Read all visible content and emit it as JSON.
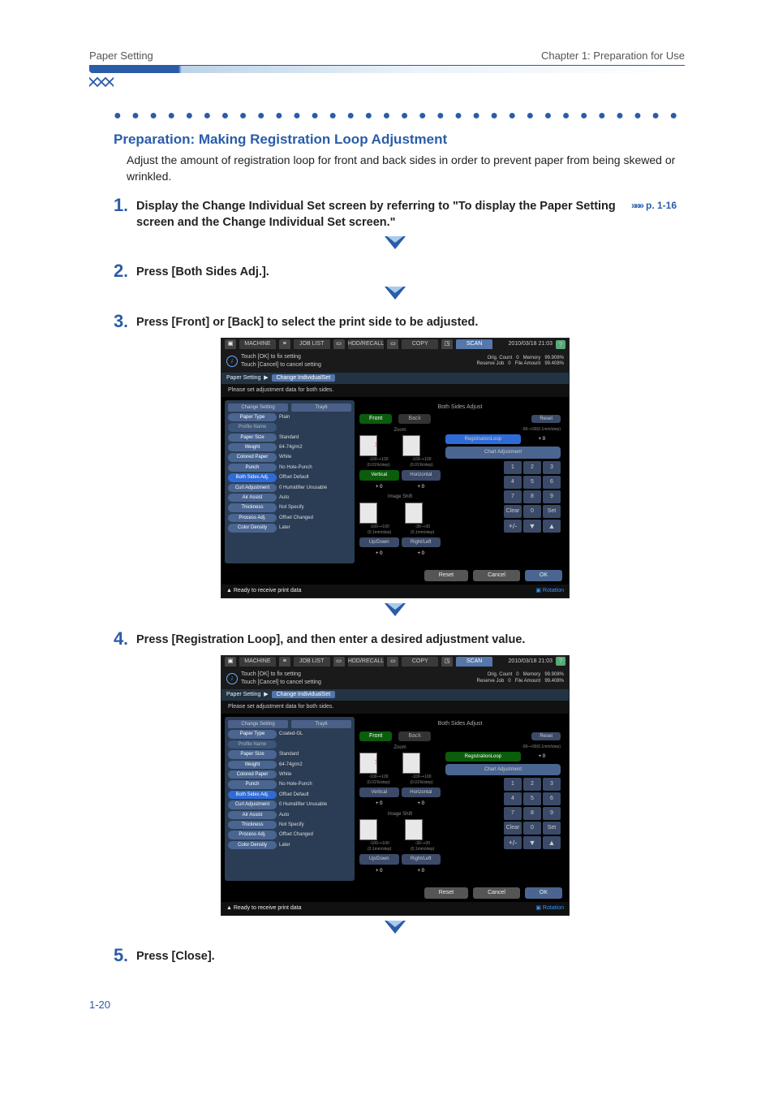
{
  "header": {
    "left": "Paper Setting",
    "right": "Chapter 1: Preparation for Use"
  },
  "dots": "● ● ● ● ● ● ● ● ● ● ● ● ● ● ● ● ● ● ● ● ● ● ● ● ● ● ● ● ● ● ● ● ● ● ● ● ● ● ● ● ● ● ● ● ●",
  "prep": {
    "title": "Preparation: Making Registration Loop Adjustment",
    "desc": "Adjust the amount of registration loop for front and back sides in order to prevent paper from being skewed or wrinkled."
  },
  "steps": {
    "s1": {
      "num": "1",
      "text": "Display the Change Individual Set screen by referring to \"To display the Paper Setting screen and the Change Individual Set screen.\"",
      "ref_chevron": "»»»",
      "ref": "p. 1-16"
    },
    "s2": {
      "num": "2",
      "text": "Press [Both Sides Adj.]."
    },
    "s3": {
      "num": "3",
      "text": "Press [Front] or [Back] to select the print side to be adjusted."
    },
    "s4": {
      "num": "4",
      "text": "Press [Registration Loop], and then enter a desired adjustment value."
    },
    "s5": {
      "num": "5",
      "text": "Press [Close]."
    }
  },
  "panel_common": {
    "tabs": {
      "machine": "MACHINE",
      "joblist": "",
      "recall": "",
      "copy": "",
      "scan": "SCAN"
    },
    "datetime": "2010/03/18 21:03",
    "info_line1": "Touch [OK] to fix setting",
    "info_line2": "Touch [Cancel] to cancel setting",
    "stat_orig": "Orig. Count",
    "stat_orig_v": "0",
    "stat_mem": "Memory",
    "stat_mem_v": "99.908%",
    "stat_res": "Reserve Job",
    "stat_res_v": "0",
    "stat_file": "File Amount",
    "stat_file_v": "99.408%",
    "breadcrumb_a": "Paper Setting",
    "breadcrumb_b": "Change IndividualSet",
    "subtitle": "Please set adjustment data for both sides.",
    "left_header_a": "Change Setting",
    "left_header_b": "Tray6",
    "right_title": "Both Sides Adjust",
    "tab_front": "Front",
    "tab_back": "Back",
    "reset": "Reset",
    "zoom_title": "Zoom",
    "zoom_vrange": "-100–+100\n(0.01%/step)",
    "zoom_hrange": "-100–+100\n(0.01%/step)",
    "imgshift_title": "Image Shift",
    "imgshift_vrange": "-100–+100\n(0.1mm/step)",
    "imgshift_hrange": "-30–+30\n(0.1mm/step)",
    "regloop_range": "-99–+99(0.1mm/step)",
    "btn_regloop": "RegistrationLoop",
    "btn_chart": "Chart Adjustment",
    "btn_vertical": "Vertical",
    "btn_horizontal": "Horizontal",
    "btn_updown": "Up/Down",
    "btn_rightleft": "Right/Left",
    "val_zero": "+  0",
    "keypad": [
      "1",
      "2",
      "3",
      "4",
      "5",
      "6",
      "7",
      "8",
      "9",
      "+/-",
      "0"
    ],
    "key_clear": "Clear",
    "key_set": "Set",
    "foot_reset": "Reset",
    "foot_cancel": "Cancel",
    "foot_ok": "OK",
    "status": "Ready to receive print data",
    "rotation": "Rotation",
    "settings_labels": {
      "paper_type": "Paper Type",
      "profile": "Profile Name",
      "paper_size": "Paper Size",
      "weight": "Weight",
      "colored": "Colored Paper",
      "punch": "Punch",
      "both_sides": "Both Sides Adj.",
      "curl": "Curl Adjustment",
      "air": "Air Assist",
      "thickness": "Thickness",
      "process": "Process Adj.",
      "density": "Color Density"
    }
  },
  "panel_a_values": {
    "paper_type": "Plain",
    "profile": "",
    "paper_size": "Standard",
    "weight": "64-74g/m2",
    "colored": "White",
    "punch": "No Hole-Punch",
    "both_sides": "Offset Default",
    "curl": "0  Humidifier Unusable",
    "air": "Auto",
    "thickness": "Not Specify",
    "process": "Offset Changed",
    "density": "Later"
  },
  "panel_b_values": {
    "paper_type": "Coated-GL",
    "profile": "",
    "paper_size": "Standard",
    "weight": "64-74g/m2",
    "colored": "White",
    "punch": "No Hole-Punch",
    "both_sides": "Offset Default",
    "curl": "0  Humidifier Unusable",
    "air": "Auto",
    "thickness": "Not Specify",
    "process": "Offset Changed",
    "density": "Later"
  },
  "pagenum": "1-20",
  "colors": {
    "accent": "#2a5ca8",
    "panel_bg": "#000000",
    "panel_blue": "#4a6590",
    "panel_green": "#0b5c0b"
  }
}
